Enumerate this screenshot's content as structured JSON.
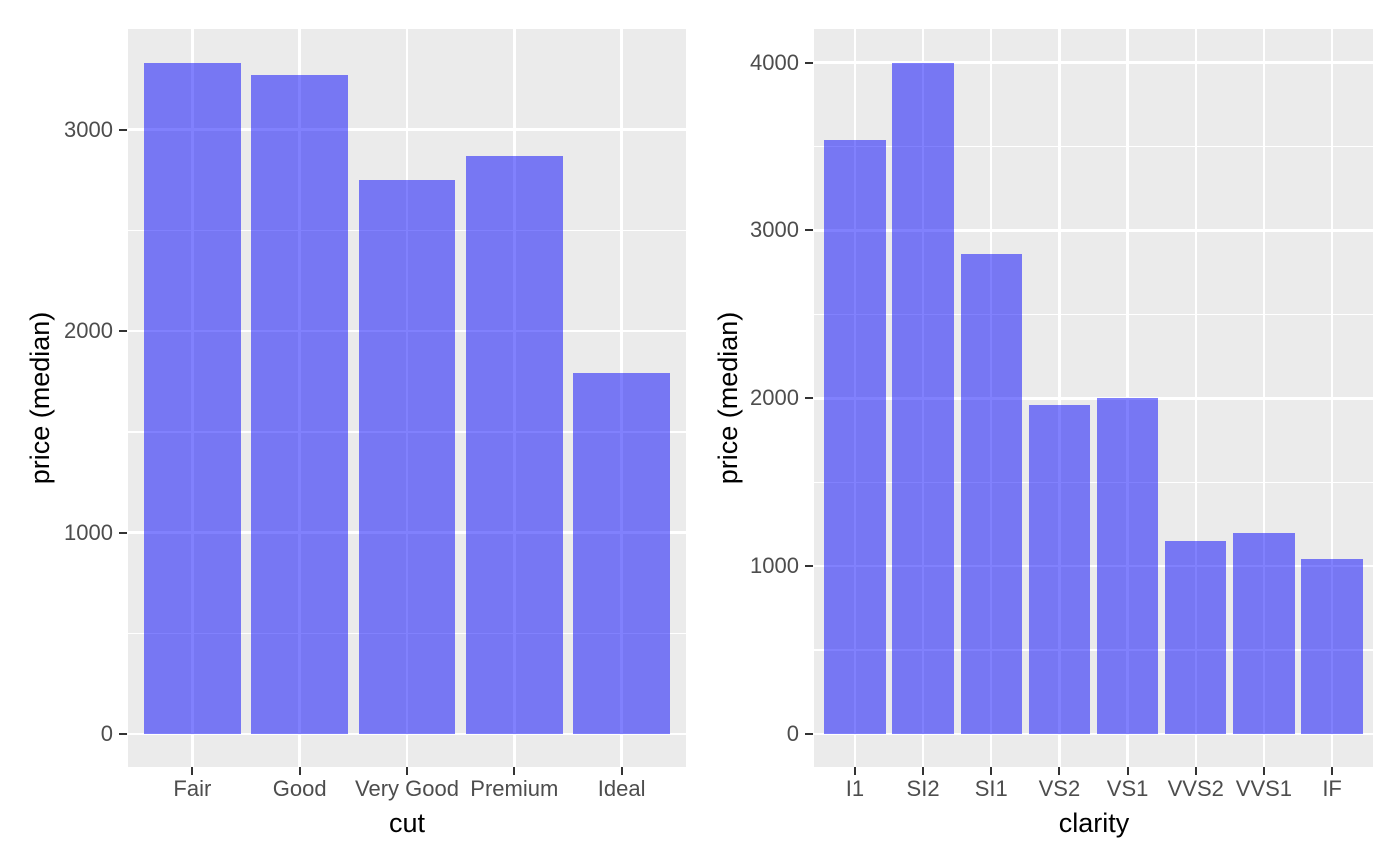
{
  "figure": {
    "description": "Two side-by-side bar charts of median diamond price",
    "background": "#FFFFFF"
  },
  "style": {
    "bar_fill": "rgba(13,13,251,0.52)",
    "panel_background": "#EBEBEB",
    "gridline_color": "#FFFFFF",
    "tick_mark_color": "#333333",
    "tick_label_color": "#4D4D4D",
    "axis_title_color": "#000000"
  },
  "chart_data": [
    {
      "type": "bar",
      "title": "",
      "xlabel": "cut",
      "ylabel": "price (median)",
      "categories": [
        "Fair",
        "Good",
        "Very Good",
        "Premium",
        "Ideal"
      ],
      "values": [
        3330,
        3270,
        2750,
        2870,
        1790
      ],
      "yticks": [
        0,
        1000,
        2000,
        3000
      ],
      "ytick_labels": [
        "0",
        "1000",
        "2000",
        "3000"
      ],
      "ylim": [
        0,
        3500
      ],
      "grid": "white major and minor horizontal gridlines plus vertical gridline per category on grey panel",
      "legend": "none"
    },
    {
      "type": "bar",
      "title": "",
      "xlabel": "clarity",
      "ylabel": "price (median)",
      "categories": [
        "I1",
        "SI2",
        "SI1",
        "VS2",
        "VS1",
        "VVS2",
        "VVS1",
        "IF"
      ],
      "values": [
        3540,
        4000,
        2860,
        1960,
        2000,
        1150,
        1200,
        1040
      ],
      "yticks": [
        0,
        1000,
        2000,
        3000,
        4000
      ],
      "ytick_labels": [
        "0",
        "1000",
        "2000",
        "3000",
        "4000"
      ],
      "ylim": [
        0,
        4200
      ],
      "grid": "white major and minor horizontal gridlines plus vertical gridline per category on grey panel",
      "legend": "none"
    }
  ]
}
